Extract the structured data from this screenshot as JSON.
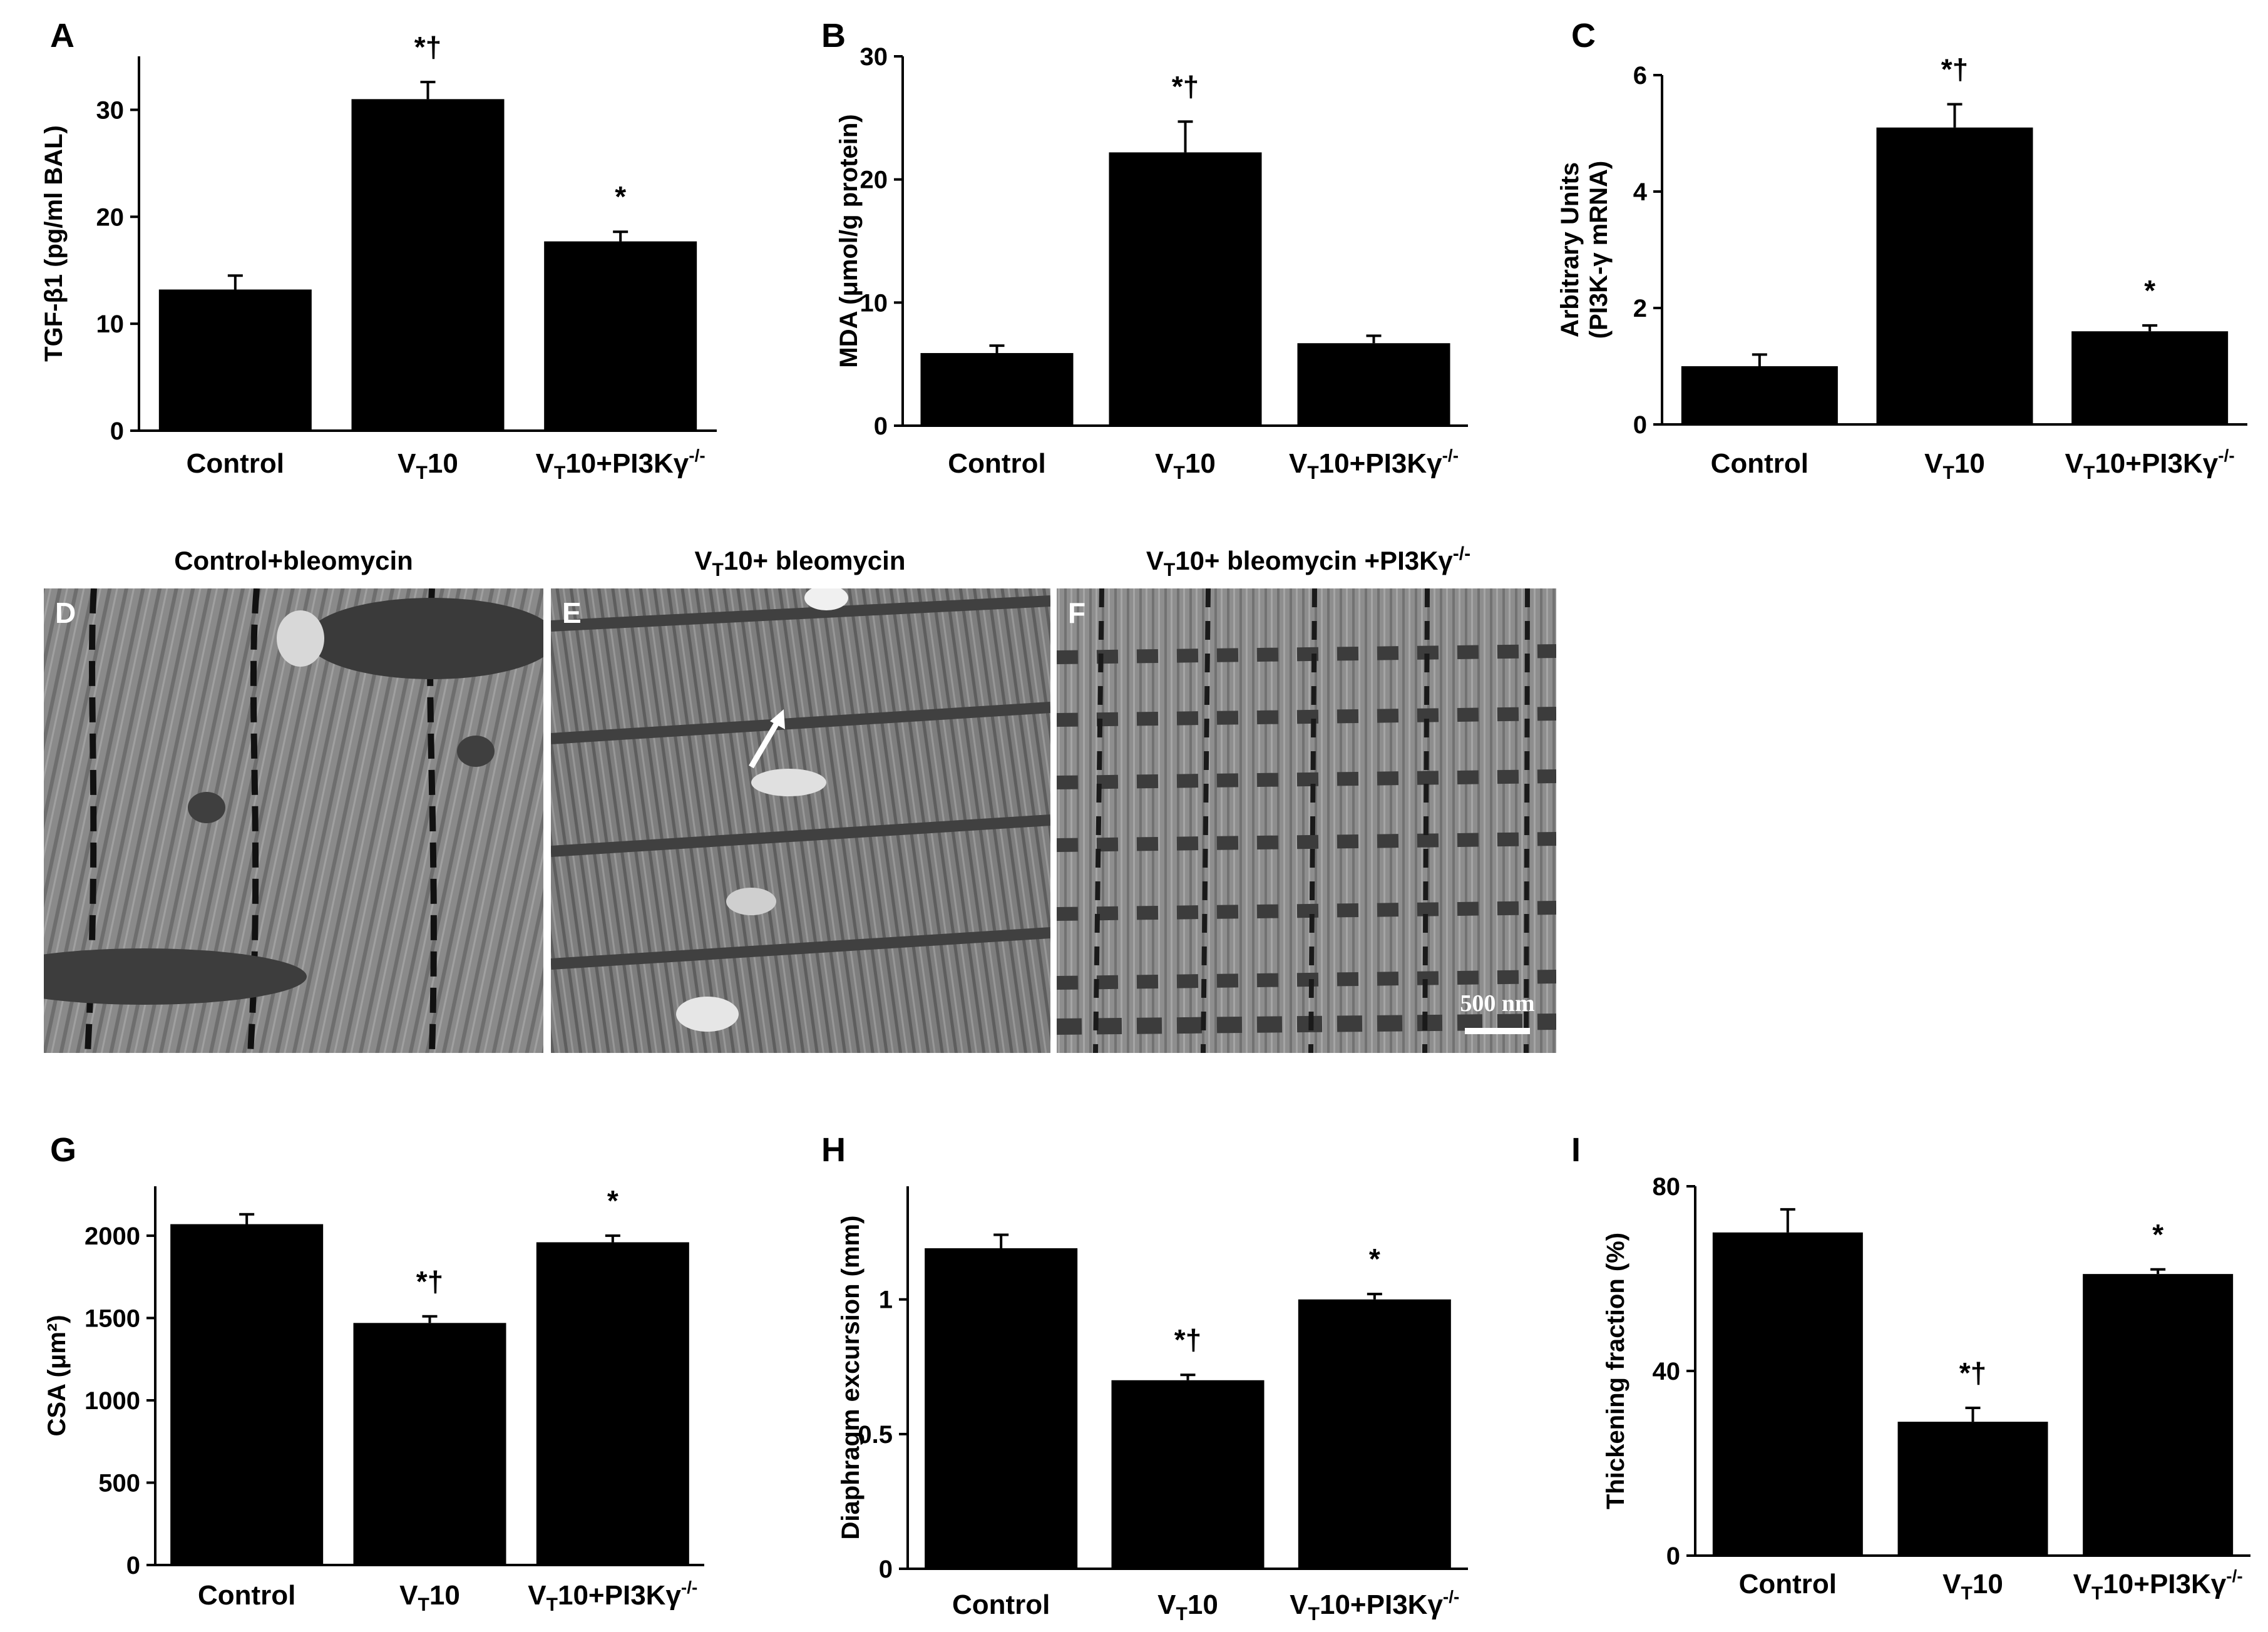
{
  "figure": {
    "colors": {
      "bar": "#000000",
      "axis": "#000000",
      "background": "#ffffff",
      "scale_bar": "#ffffff",
      "arrow": "#ffffff"
    }
  },
  "chart_data": [
    {
      "panel": "A",
      "type": "bar",
      "categories": [
        "Control",
        "VT10",
        "VT10+PI3Kγ-/-"
      ],
      "category_labels": [
        {
          "pre": "Control",
          "sub": "",
          "post": "",
          "sup": ""
        },
        {
          "pre": "V",
          "sub": "T",
          "post": "10",
          "sup": ""
        },
        {
          "pre": "V",
          "sub": "T",
          "post": "10+PI3Kγ",
          "sup": "-/-"
        }
      ],
      "values": [
        13.2,
        31.0,
        17.7
      ],
      "errors": [
        1.3,
        1.6,
        0.9
      ],
      "annotations": [
        "",
        "*†",
        "*"
      ],
      "ylabel": "TGF-β1 (pg/ml BAL)",
      "ylim": [
        0,
        35
      ],
      "yticks": [
        0,
        10,
        20,
        30
      ],
      "ytick_labels": [
        "0",
        "10",
        "20",
        "30"
      ]
    },
    {
      "panel": "B",
      "type": "bar",
      "categories": [
        "Control",
        "VT10",
        "VT10+PI3Kγ-/-"
      ],
      "category_labels": [
        {
          "pre": "Control",
          "sub": "",
          "post": "",
          "sup": ""
        },
        {
          "pre": "V",
          "sub": "T",
          "post": "10",
          "sup": ""
        },
        {
          "pre": "V",
          "sub": "T",
          "post": "10+PI3Kγ",
          "sup": "-/-"
        }
      ],
      "values": [
        5.9,
        22.2,
        6.7
      ],
      "errors": [
        0.6,
        2.5,
        0.6
      ],
      "annotations": [
        "",
        "*†",
        ""
      ],
      "ylabel": "MDA (μmol/g protein)",
      "ylim": [
        0,
        30
      ],
      "yticks": [
        0,
        10,
        20,
        30
      ],
      "ytick_labels": [
        "0",
        "10",
        "20",
        "30"
      ]
    },
    {
      "panel": "C",
      "type": "bar",
      "categories": [
        "Control",
        "VT10",
        "VT10+PI3Kγ-/-"
      ],
      "category_labels": [
        {
          "pre": "Control",
          "sub": "",
          "post": "",
          "sup": ""
        },
        {
          "pre": "V",
          "sub": "T",
          "post": "10",
          "sup": ""
        },
        {
          "pre": "V",
          "sub": "T",
          "post": "10+PI3Kγ",
          "sup": "-/-"
        }
      ],
      "values": [
        1.0,
        5.1,
        1.6
      ],
      "errors": [
        0.2,
        0.4,
        0.1
      ],
      "annotations": [
        "",
        "*†",
        "*"
      ],
      "ylabel_lines": [
        "Arbitrary Units",
        "(PI3K-γ mRNA)"
      ],
      "ylim": [
        0,
        6
      ],
      "yticks": [
        0,
        2,
        4,
        6
      ],
      "ytick_labels": [
        "0",
        "2",
        "4",
        "6"
      ]
    },
    {
      "panel": "G",
      "type": "bar",
      "categories": [
        "Control",
        "VT10",
        "VT10+PI3Kγ-/-"
      ],
      "category_labels": [
        {
          "pre": "Control",
          "sub": "",
          "post": "",
          "sup": ""
        },
        {
          "pre": "V",
          "sub": "T",
          "post": "10",
          "sup": ""
        },
        {
          "pre": "V",
          "sub": "T",
          "post": "10+PI3Kγ",
          "sup": "-/-"
        }
      ],
      "values": [
        2070,
        1470,
        1960
      ],
      "errors": [
        60,
        40,
        40
      ],
      "annotations": [
        "",
        "*†",
        "*"
      ],
      "ylabel": "CSA (μm²)",
      "ylim": [
        0,
        2300
      ],
      "yticks": [
        0,
        500,
        1000,
        1500,
        2000
      ],
      "ytick_labels": [
        "0",
        "500",
        "1000",
        "1500",
        "2000"
      ]
    },
    {
      "panel": "H",
      "type": "bar",
      "categories": [
        "Control",
        "VT10",
        "VT10+PI3Kγ-/-"
      ],
      "category_labels": [
        {
          "pre": "Control",
          "sub": "",
          "post": "",
          "sup": ""
        },
        {
          "pre": "V",
          "sub": "T",
          "post": "10",
          "sup": ""
        },
        {
          "pre": "V",
          "sub": "T",
          "post": "10+PI3Kγ",
          "sup": "-/-"
        }
      ],
      "values": [
        1.19,
        0.7,
        1.0
      ],
      "errors": [
        0.05,
        0.02,
        0.02
      ],
      "annotations": [
        "",
        "*†",
        "*"
      ],
      "ylabel": "Diaphragm excursion (mm)",
      "ylim": [
        0,
        1.42
      ],
      "yticks": [
        0,
        0.5,
        1
      ],
      "ytick_labels": [
        "0",
        "0.5",
        "1"
      ]
    },
    {
      "panel": "I",
      "type": "bar",
      "categories": [
        "Control",
        "VT10",
        "VT10+PI3Kγ-/-"
      ],
      "category_labels": [
        {
          "pre": "Control",
          "sub": "",
          "post": "",
          "sup": ""
        },
        {
          "pre": "V",
          "sub": "T",
          "post": "10",
          "sup": ""
        },
        {
          "pre": "V",
          "sub": "T",
          "post": "10+PI3Kγ",
          "sup": "-/-"
        }
      ],
      "values": [
        70,
        29,
        61
      ],
      "errors": [
        5,
        3,
        1
      ],
      "annotations": [
        "",
        "*†",
        "*"
      ],
      "ylabel": "Thickening fraction (%)",
      "ylim": [
        0,
        80
      ],
      "yticks": [
        0,
        40,
        80
      ],
      "ytick_labels": [
        "0",
        "40",
        "80"
      ]
    }
  ],
  "micrographs": [
    {
      "letter": "D",
      "title": "Control+bleomycin"
    },
    {
      "letter": "E",
      "title": "VT10+ bleomycin",
      "title_parts": {
        "pre": "V",
        "sub": "T",
        "post": "10+ bleomycin"
      }
    },
    {
      "letter": "F",
      "title": "VT10+ bleomycin +PI3Kγ-/-",
      "title_parts": {
        "pre": "V",
        "sub": "T",
        "post": "10+ bleomycin +PI3Kγ",
        "sup": "-/-"
      },
      "scale_bar_label": "500 nm"
    }
  ]
}
